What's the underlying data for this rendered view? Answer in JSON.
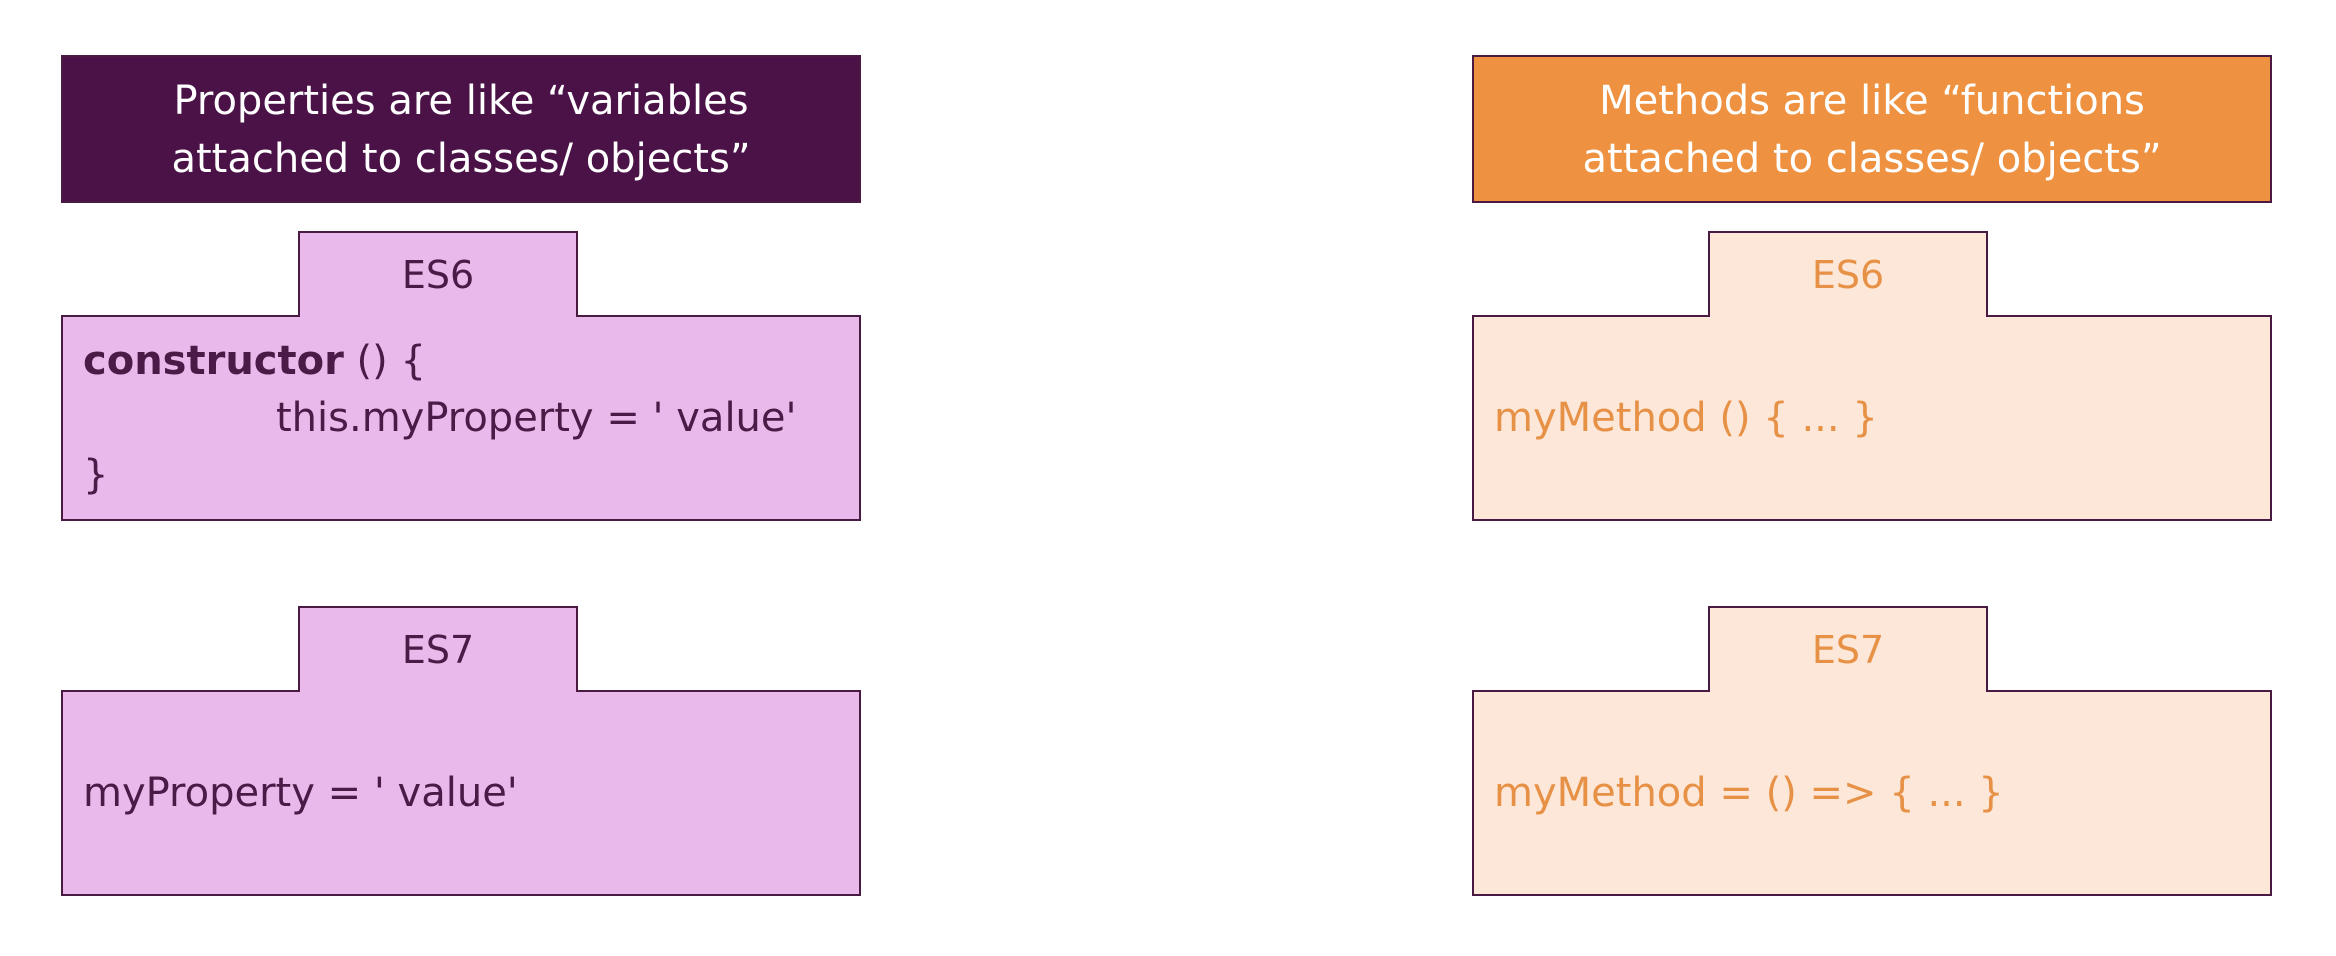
{
  "properties": {
    "header_line1": "Properties are like “variables",
    "header_line2": "attached to classes/ objects”",
    "es6": {
      "tab": "ES6",
      "keyword": "constructor",
      "line1_rest": " () {",
      "line2": "this.myProperty = ' value'",
      "line3": "}"
    },
    "es7": {
      "tab": "ES7",
      "code": "myProperty = ' value'"
    }
  },
  "methods": {
    "header_line1": "Methods are like “functions",
    "header_line2": "attached to classes/ objects”",
    "es6": {
      "tab": "ES6",
      "code": "myMethod () { ... }"
    },
    "es7": {
      "tab": "ES7",
      "code": "myMethod = () => { ... }"
    }
  },
  "colors": {
    "purple_dark": "#4b1248",
    "purple_light": "#e9b9eb",
    "orange": "#ee9140",
    "peach": "#fce7d8"
  }
}
